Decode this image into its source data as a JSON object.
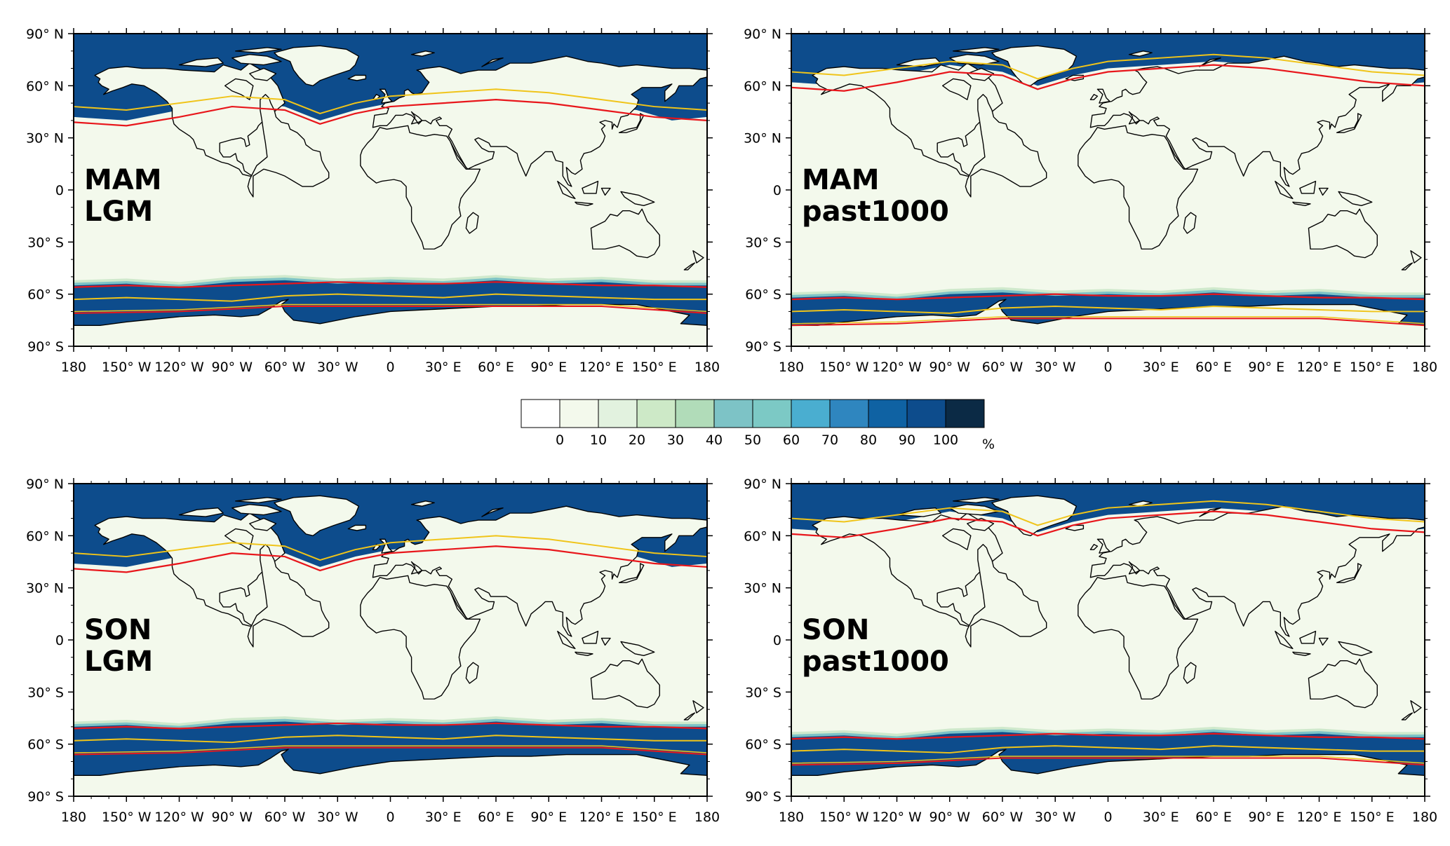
{
  "colors": {
    "background": "#f3f9ec",
    "ice": "#0d4c8c",
    "ice_mid": "#2f86bf",
    "ice_light": "#7dc3c6",
    "ice_fringe": "#cfe9cc",
    "coast": "#000000",
    "line_red": "#e8161b",
    "line_yellow": "#f0c419"
  },
  "lat_ticks": [
    "90° N",
    "60° N",
    "30° N",
    "0",
    "30° S",
    "60° S",
    "90° S"
  ],
  "lon_ticks": [
    "180",
    "150° W",
    "120° W",
    "90° W",
    "60° W",
    "30° W",
    "0",
    "30° E",
    "60° E",
    "90° E",
    "120° E",
    "150° E",
    "180"
  ],
  "colorbar": {
    "labels": [
      "0",
      "10",
      "20",
      "30",
      "40",
      "50",
      "60",
      "70",
      "80",
      "90",
      "100"
    ],
    "unit": "%",
    "colors": [
      "#ffffff",
      "#f3f9ec",
      "#e2f2df",
      "#cde9c7",
      "#b1dcb9",
      "#7dc3c6",
      "#7cc9c5",
      "#4aaed0",
      "#2f86bf",
      "#0f62a3",
      "#0d4c8c",
      "#0b2a45"
    ]
  },
  "panels": [
    {
      "id": "mam-lgm",
      "season": "MAM",
      "experiment": "LGM",
      "nh_edge": 42,
      "sh_edge": -55
    },
    {
      "id": "mam-past1000",
      "season": "MAM",
      "experiment": "past1000",
      "nh_edge": 62,
      "sh_edge": -62
    },
    {
      "id": "son-lgm",
      "season": "SON",
      "experiment": "LGM",
      "nh_edge": 44,
      "sh_edge": -50
    },
    {
      "id": "son-past1000",
      "season": "SON",
      "experiment": "past1000",
      "nh_edge": 64,
      "sh_edge": -56
    }
  ]
}
